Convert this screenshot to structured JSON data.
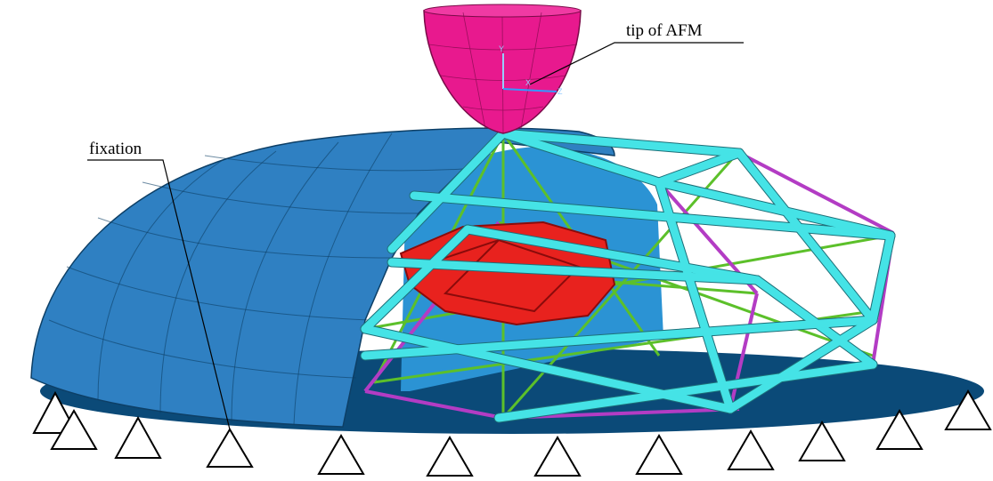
{
  "labels": {
    "tip": "tip of AFM",
    "fixation": "fixation"
  },
  "tip_axes": {
    "y": "Y",
    "x": "X",
    "z": "Z"
  }
}
